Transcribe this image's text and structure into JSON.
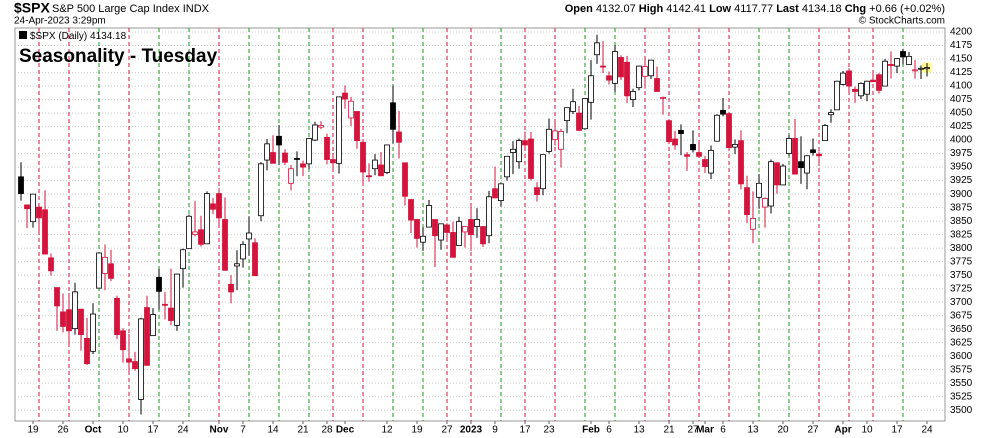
{
  "chart_data": {
    "type": "candlestick",
    "symbol": "$SPX",
    "name": "S&P 500 Large Cap Index",
    "exchange": "INDX",
    "timestamp": "24-Apr-2023 3:29pm",
    "copyright": "© StockCharts.com",
    "quote": [
      {
        "label": "Open",
        "value": 4132.07
      },
      {
        "label": "High",
        "value": 4142.41
      },
      {
        "label": "Low",
        "value": 4117.77
      },
      {
        "label": "Last",
        "value": 4134.18
      },
      {
        "label": "Chg",
        "value": "+0.66 (+0.02%)"
      }
    ],
    "title": "Seasonality - Tuesday",
    "up_color": "#000000",
    "down_color": "#d4143c",
    "title_color": "#0a14c8",
    "grid": true,
    "ylim": [
      3480,
      4207.5
    ],
    "yticks": [
      3500,
      3525,
      3550,
      3575,
      3600,
      3625,
      3650,
      3675,
      3700,
      3725,
      3750,
      3775,
      3800,
      3825,
      3850,
      3875,
      3900,
      3925,
      3950,
      3975,
      4000,
      4025,
      4050,
      4075,
      4100,
      4125,
      4150,
      4175,
      4200
    ],
    "categories": [
      null,
      null,
      "19",
      null,
      null,
      null,
      null,
      "26",
      null,
      null,
      null,
      null,
      "Oct",
      null,
      null,
      null,
      null,
      "10",
      null,
      null,
      null,
      null,
      "17",
      null,
      null,
      null,
      null,
      "24",
      null,
      null,
      null,
      null,
      null,
      "Nov",
      null,
      null,
      null,
      "7",
      null,
      null,
      null,
      null,
      "14",
      null,
      null,
      null,
      null,
      "21",
      null,
      null,
      null,
      "28",
      null,
      null,
      "Dec",
      null,
      null,
      null,
      null,
      null,
      null,
      "12",
      null,
      null,
      null,
      null,
      "19",
      null,
      null,
      null,
      null,
      "27",
      null,
      null,
      null,
      "2023",
      null,
      null,
      null,
      "9",
      null,
      null,
      null,
      null,
      "17",
      null,
      null,
      null,
      "23",
      null,
      null,
      null,
      null,
      null,
      null,
      "Feb",
      null,
      null,
      "6",
      null,
      null,
      null,
      null,
      "13",
      null,
      null,
      null,
      null,
      "21",
      null,
      null,
      null,
      "27",
      null,
      "Mar",
      null,
      null,
      "6",
      null,
      null,
      null,
      null,
      "13",
      null,
      null,
      null,
      null,
      "20",
      null,
      null,
      null,
      null,
      "27",
      null,
      null,
      null,
      null,
      "Apr",
      null,
      null,
      null,
      "10",
      null,
      null,
      null,
      null,
      "17",
      null,
      null,
      null,
      null,
      "24"
    ],
    "series": [
      {
        "name": "$SPX (Daily)",
        "last": 4134.18,
        "open": [
          3932,
          3880,
          3849,
          3876,
          3871,
          3782,
          3727,
          3682,
          3686,
          3651,
          3687,
          3633,
          3609,
          3726,
          3753,
          3771,
          3707,
          3647,
          3595,
          3590,
          3520,
          3690,
          3638,
          3746,
          3696,
          3689,
          3657,
          3762,
          3799,
          3825,
          3834,
          3808,
          3882,
          3901,
          3853,
          3733,
          3767,
          3780,
          3817,
          3810,
          3860,
          3963,
          3977,
          4007,
          3976,
          3920,
          3966,
          3956,
          3956,
          4000,
          4024,
          4005,
          3964,
          3957,
          4087,
          4041,
          4053,
          3996,
          3934,
          3947,
          3954,
          3940,
          4069,
          4015,
          3958,
          3890,
          3853,
          3811,
          3839,
          3853,
          3815,
          3843,
          3829,
          3805,
          3830,
          3853,
          3840,
          3840,
          3823,
          3910,
          3888,
          3932,
          3977,
          3960,
          3999,
          4002,
          3912,
          3910,
          3979,
          4001,
          3983,
          4036,
          4053,
          4050,
          4021,
          4070,
          4158,
          4137,
          4119,
          4105,
          4153,
          4144,
          4075,
          4097,
          4118,
          4119,
          4114,
          4078,
          4036,
          4002,
          4018,
          3973,
          3992,
          3977,
          3964,
          3939,
          3998,
          4055,
          4049,
          3987,
          3999,
          3912,
          3835,
          3894,
          3876,
          3878,
          3958,
          3917,
          3975,
          4003,
          3960,
          3939,
          3982,
          3974,
          3999,
          4047,
          4056,
          4103,
          4128,
          4094,
          4082,
          4085,
          4111,
          4121,
          4100,
          4140,
          4137,
          4164,
          4140,
          4130,
          4132,
          4132.07
        ],
        "high": [
          3959,
          3880,
          3900,
          3876,
          3907,
          3790,
          3727,
          3716,
          3717,
          3736,
          3687,
          3671,
          3698,
          3791,
          3807,
          3797,
          3712,
          3652,
          3641,
          3608,
          3671,
          3712,
          3689,
          3762,
          3719,
          3762,
          3753,
          3799,
          3862,
          3887,
          3860,
          3905,
          3893,
          3911,
          3894,
          3750,
          3796,
          3813,
          3859,
          3818,
          3959,
          4002,
          4009,
          4028,
          3983,
          3954,
          3979,
          3962,
          4003,
          4034,
          4035,
          4012,
          3976,
          4080,
          4101,
          4080,
          4053,
          4002,
          3957,
          3974,
          3978,
          3991,
          4101,
          4054,
          3958,
          3890,
          3854,
          3839,
          3889,
          3853,
          3845,
          3846,
          3849,
          3858,
          3840,
          3878,
          3874,
          3840,
          3906,
          3951,
          3919,
          3970,
          3998,
          4003,
          4016,
          4015,
          3922,
          3973,
          4040,
          4033,
          4021,
          4060,
          4095,
          4063,
          4077,
          4148,
          4195,
          4183,
          4127,
          4176,
          4157,
          4156,
          4095,
          4138,
          4156,
          4148,
          4136,
          4081,
          4036,
          4017,
          4029,
          3978,
          4018,
          3998,
          3971,
          3990,
          4048,
          4078,
          4051,
          4001,
          4018,
          3934,
          3905,
          3937,
          3894,
          3964,
          3959,
          3956,
          4010,
          4039,
          4007,
          3972,
          4003,
          3979,
          4030,
          4057,
          4110,
          4128,
          4133,
          4099,
          4107,
          4110,
          4124,
          4124,
          4150,
          4164,
          4152,
          4169,
          4163,
          4148,
          4138,
          4142.41
        ],
        "low": [
          3888,
          3837,
          3838,
          3827,
          3789,
          3749,
          3647,
          3644,
          3624,
          3640,
          3610,
          3584,
          3604,
          3726,
          3722,
          3739,
          3632,
          3588,
          3568,
          3573,
          3492,
          3584,
          3638,
          3686,
          3668,
          3657,
          3647,
          3727,
          3799,
          3822,
          3803,
          3808,
          3863,
          3843,
          3758,
          3698,
          3722,
          3764,
          3786,
          3749,
          3850,
          3944,
          3957,
          3954,
          3954,
          3907,
          3933,
          3933,
          3946,
          3998,
          4020,
          3955,
          3947,
          3938,
          4058,
          4026,
          3984,
          3918,
          3923,
          3935,
          3933,
          3937,
          3994,
          3966,
          3879,
          3828,
          3801,
          3795,
          3839,
          3765,
          3797,
          3813,
          3783,
          3805,
          3801,
          3795,
          3819,
          3802,
          3809,
          3892,
          3877,
          3925,
          3937,
          3947,
          3984,
          3925,
          3886,
          3898,
          3975,
          3990,
          3949,
          4013,
          4048,
          4017,
          4020,
          4038,
          4141,
          4124,
          4103,
          4089,
          4111,
          4069,
          4061,
          4092,
          4095,
          4113,
          4089,
          4047,
          3997,
          3982,
          3972,
          3943,
          3977,
          3968,
          3939,
          3928,
          3998,
          4044,
          3980,
          3974,
          3909,
          3846,
          3809,
          3873,
          3838,
          3864,
          3901,
          3917,
          3971,
          3937,
          3919,
          3909,
          3971,
          3952,
          3999,
          4032,
          4056,
          4101,
          4086,
          4069,
          4076,
          4072,
          4108,
          4086,
          4100,
          4114,
          4124,
          4140,
          4140,
          4114,
          4113,
          4117.77
        ],
        "close": [
          3901,
          3873,
          3900,
          3856,
          3789,
          3758,
          3693,
          3655,
          3647,
          3719,
          3640,
          3586,
          3678,
          3791,
          3783,
          3744,
          3640,
          3612,
          3589,
          3577,
          3669,
          3583,
          3677,
          3720,
          3695,
          3666,
          3752,
          3797,
          3859,
          3830,
          3807,
          3901,
          3872,
          3856,
          3759,
          3719,
          3771,
          3807,
          3828,
          3749,
          3956,
          3993,
          3957,
          3991,
          3959,
          3947,
          3965,
          3950,
          4003,
          4028,
          4027,
          3964,
          3958,
          4080,
          4076,
          4072,
          3999,
          3941,
          3933,
          3963,
          3934,
          3991,
          4020,
          3996,
          3896,
          3852,
          3818,
          3822,
          3879,
          3823,
          3845,
          3829,
          3783,
          3849,
          3840,
          3825,
          3853,
          3808,
          3895,
          3893,
          3919,
          3970,
          3983,
          3999,
          3991,
          3929,
          3899,
          3973,
          4020,
          4017,
          4016,
          4060,
          4071,
          4018,
          4077,
          4119,
          4180,
          4136,
          4111,
          4164,
          4117,
          4082,
          4090,
          4137,
          4136,
          4148,
          4090,
          4079,
          3997,
          3991,
          4012,
          3970,
          3982,
          3970,
          3951,
          3981,
          4046,
          4048,
          3986,
          3992,
          3919,
          3862,
          3855,
          3920,
          3892,
          3960,
          3917,
          3952,
          4003,
          3937,
          3949,
          3971,
          3977,
          3971,
          4027,
          4051,
          4109,
          4124,
          4100,
          4090,
          4105,
          4109,
          4108,
          4092,
          4146,
          4138,
          4151,
          4154,
          4155,
          4130,
          4133,
          4134.18
        ]
      }
    ]
  }
}
